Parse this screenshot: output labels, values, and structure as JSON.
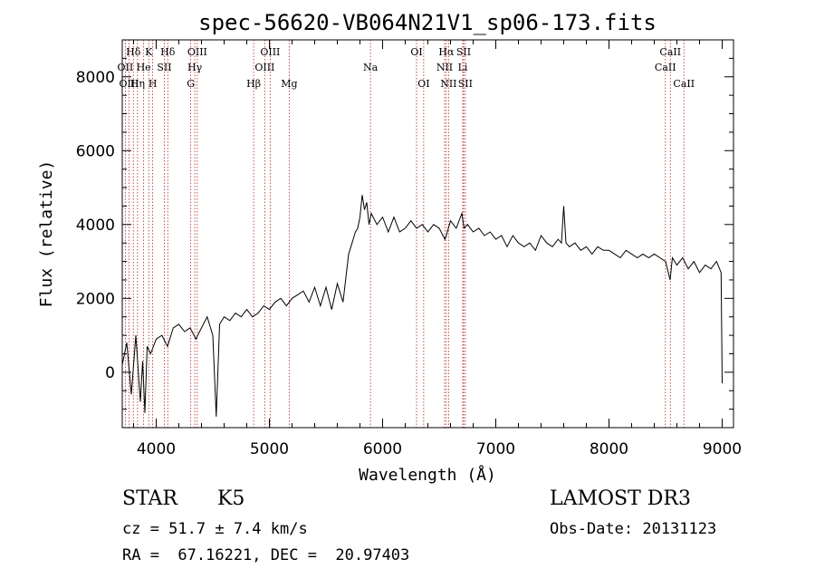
{
  "chart_data": {
    "type": "line",
    "title": "spec-56620-VB064N21V1_sp06-173.fits",
    "xlabel": "Wavelength (Å)",
    "ylabel": "Flux (relative)",
    "xlim": [
      3700,
      9100
    ],
    "ylim": [
      -1500,
      9000
    ],
    "x_ticks": [
      4000,
      5000,
      6000,
      7000,
      8000,
      9000
    ],
    "y_ticks": [
      0,
      2000,
      4000,
      6000,
      8000
    ],
    "series": [
      {
        "name": "flux",
        "color": "#000000",
        "x": [
          3700,
          3740,
          3780,
          3820,
          3860,
          3880,
          3900,
          3920,
          3950,
          4000,
          4050,
          4100,
          4150,
          4200,
          4250,
          4300,
          4350,
          4400,
          4450,
          4500,
          4530,
          4560,
          4600,
          4650,
          4700,
          4750,
          4800,
          4850,
          4900,
          4950,
          5000,
          5050,
          5100,
          5150,
          5200,
          5250,
          5300,
          5350,
          5400,
          5450,
          5500,
          5550,
          5600,
          5650,
          5700,
          5720,
          5740,
          5760,
          5780,
          5800,
          5820,
          5840,
          5860,
          5880,
          5900,
          5950,
          6000,
          6050,
          6100,
          6150,
          6200,
          6250,
          6300,
          6350,
          6400,
          6450,
          6500,
          6550,
          6563,
          6600,
          6650,
          6700,
          6720,
          6750,
          6800,
          6850,
          6900,
          6950,
          7000,
          7050,
          7100,
          7150,
          7200,
          7250,
          7300,
          7350,
          7400,
          7450,
          7500,
          7550,
          7580,
          7600,
          7620,
          7650,
          7700,
          7750,
          7800,
          7850,
          7900,
          7950,
          8000,
          8050,
          8100,
          8150,
          8200,
          8250,
          8300,
          8350,
          8400,
          8450,
          8500,
          8540,
          8560,
          8600,
          8650,
          8700,
          8750,
          8800,
          8850,
          8900,
          8950,
          8990,
          9000
        ],
        "y": [
          200,
          800,
          -600,
          1000,
          -800,
          300,
          -1100,
          700,
          500,
          900,
          1000,
          700,
          1200,
          1300,
          1100,
          1200,
          900,
          1200,
          1500,
          1000,
          -1200,
          1300,
          1500,
          1400,
          1600,
          1500,
          1700,
          1500,
          1600,
          1800,
          1700,
          1900,
          2000,
          1800,
          2000,
          2100,
          2200,
          1900,
          2300,
          1800,
          2300,
          1700,
          2400,
          1900,
          3200,
          3400,
          3600,
          3800,
          3900,
          4200,
          4800,
          4400,
          4600,
          4000,
          4300,
          4000,
          4200,
          3800,
          4200,
          3800,
          3900,
          4100,
          3900,
          4000,
          3800,
          4000,
          3900,
          3600,
          3700,
          4100,
          3900,
          4300,
          3900,
          4000,
          3800,
          3900,
          3700,
          3800,
          3600,
          3700,
          3400,
          3700,
          3500,
          3400,
          3500,
          3300,
          3700,
          3500,
          3400,
          3600,
          3500,
          4500,
          3500,
          3400,
          3500,
          3300,
          3400,
          3200,
          3400,
          3300,
          3300,
          3200,
          3100,
          3300,
          3200,
          3100,
          3200,
          3100,
          3200,
          3100,
          3000,
          2500,
          3100,
          2900,
          3100,
          2800,
          3000,
          2700,
          2900,
          2800,
          3000,
          2700,
          -300
        ]
      }
    ],
    "line_markers": [
      {
        "name": "Hδ",
        "x": 3798,
        "row": 1
      },
      {
        "name": "OII",
        "x": 3727,
        "row": 2
      },
      {
        "name": "OIII",
        "x": 3760,
        "row": 3
      },
      {
        "name": "K",
        "x": 3934,
        "row": 1
      },
      {
        "name": "He",
        "x": 3889,
        "row": 2
      },
      {
        "name": "Hη",
        "x": 3835,
        "row": 3
      },
      {
        "name": "SII",
        "x": 4072,
        "row": 2
      },
      {
        "name": "H",
        "x": 3969,
        "row": 3
      },
      {
        "name": "Hδ",
        "x": 4102,
        "row": 1
      },
      {
        "name": "OIII",
        "x": 4363,
        "row": 1
      },
      {
        "name": "Hγ",
        "x": 4341,
        "row": 2
      },
      {
        "name": "G",
        "x": 4305,
        "row": 3
      },
      {
        "name": "Hβ",
        "x": 4861,
        "row": 3
      },
      {
        "name": "OIII",
        "x": 5007,
        "row": 1
      },
      {
        "name": "OIII",
        "x": 4959,
        "row": 2
      },
      {
        "name": "Mg",
        "x": 5175,
        "row": 3
      },
      {
        "name": "Na",
        "x": 5893,
        "row": 2
      },
      {
        "name": "OI",
        "x": 6300,
        "row": 1
      },
      {
        "name": "OI",
        "x": 6363,
        "row": 3
      },
      {
        "name": "Hα",
        "x": 6563,
        "row": 1
      },
      {
        "name": "NII",
        "x": 6548,
        "row": 2
      },
      {
        "name": "NII",
        "x": 6583,
        "row": 3
      },
      {
        "name": "SII",
        "x": 6716,
        "row": 1
      },
      {
        "name": "Li",
        "x": 6708,
        "row": 2
      },
      {
        "name": "SII",
        "x": 6731,
        "row": 3
      },
      {
        "name": "CaII",
        "x": 8542,
        "row": 1
      },
      {
        "name": "CaII",
        "x": 8498,
        "row": 2
      },
      {
        "name": "CaII",
        "x": 8662,
        "row": 3
      }
    ]
  },
  "info": {
    "object_class": "STAR",
    "subclass": "K5",
    "survey": "LAMOST DR3",
    "cz": "cz = 51.7 ± 7.4 km/s",
    "obs_date": "Obs-Date: 20131123",
    "coords": "RA =  67.16221, DEC =  20.97403"
  }
}
